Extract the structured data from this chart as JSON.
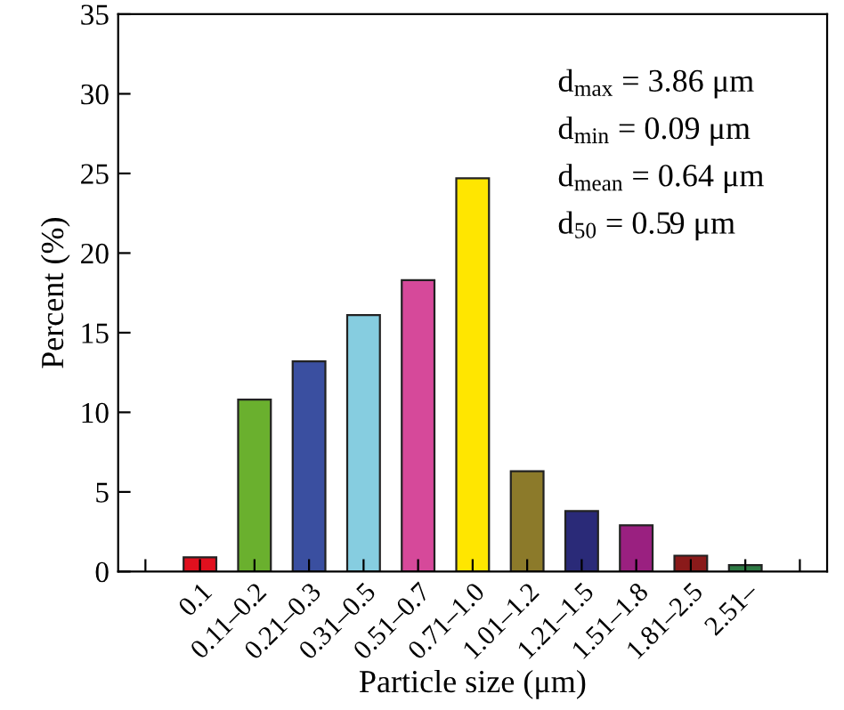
{
  "chart_data": {
    "type": "bar",
    "xlabel": "Particle size (μm)",
    "ylabel": "Percent (%)",
    "categories": [
      null,
      "0.1",
      "0.11–0.2",
      "0.21–0.3",
      "0.31–0.5",
      "0.51–0.7",
      "0.71–1.0",
      "1.01–1.2",
      "1.21–1.5",
      "1.51–1.8",
      "1.81–2.5",
      "2.51–",
      null
    ],
    "values": [
      null,
      0.9,
      10.8,
      13.2,
      16.1,
      18.3,
      24.7,
      6.3,
      3.8,
      2.9,
      1.0,
      0.4,
      null
    ],
    "colors": [
      "#000000",
      "#e0101e",
      "#6ab02e",
      "#3a4fa0",
      "#86cde0",
      "#d6499a",
      "#ffe600",
      "#8c7a2a",
      "#2a2a78",
      "#9a2080",
      "#8a1a1a",
      "#2e7a44",
      "#000000"
    ],
    "ylim": [
      0,
      35
    ],
    "yticks": [
      0,
      5,
      10,
      15,
      20,
      25,
      30,
      35
    ],
    "grid": false,
    "legend": false,
    "annotations": [
      "d$_{max}$ = 3.86 μm",
      "d$_{min}$ = 0.09 μm",
      "d$_{mean}$ = 0.64 μm",
      "d$_{50}$ = 0.59 μm"
    ]
  }
}
